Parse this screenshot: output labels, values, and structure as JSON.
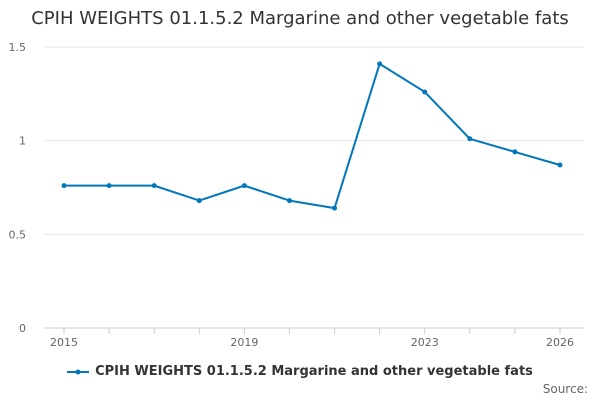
{
  "chart_data": {
    "type": "line",
    "title": "CPIH WEIGHTS 01.1.5.2 Margarine and other vegetable fats",
    "x": [
      2015,
      2016,
      2017,
      2018,
      2019,
      2020,
      2021,
      2022,
      2023,
      2024,
      2025,
      2026
    ],
    "xticks": [
      "2015",
      "2019",
      "2023",
      "2026"
    ],
    "yticks": [
      "0",
      "0.5",
      "1",
      "1.5"
    ],
    "ylim": [
      0,
      1.5
    ],
    "xlim": [
      2015,
      2026
    ],
    "series": [
      {
        "name": "CPIH WEIGHTS 01.1.5.2 Margarine and other vegetable fats",
        "color": "#0077bb",
        "values": [
          0.76,
          0.76,
          0.76,
          0.68,
          0.76,
          0.68,
          0.64,
          1.41,
          1.26,
          1.01,
          0.94,
          0.87
        ]
      }
    ],
    "legend_position": "bottom",
    "grid": true
  },
  "footer": {
    "source_label": "Source:"
  }
}
